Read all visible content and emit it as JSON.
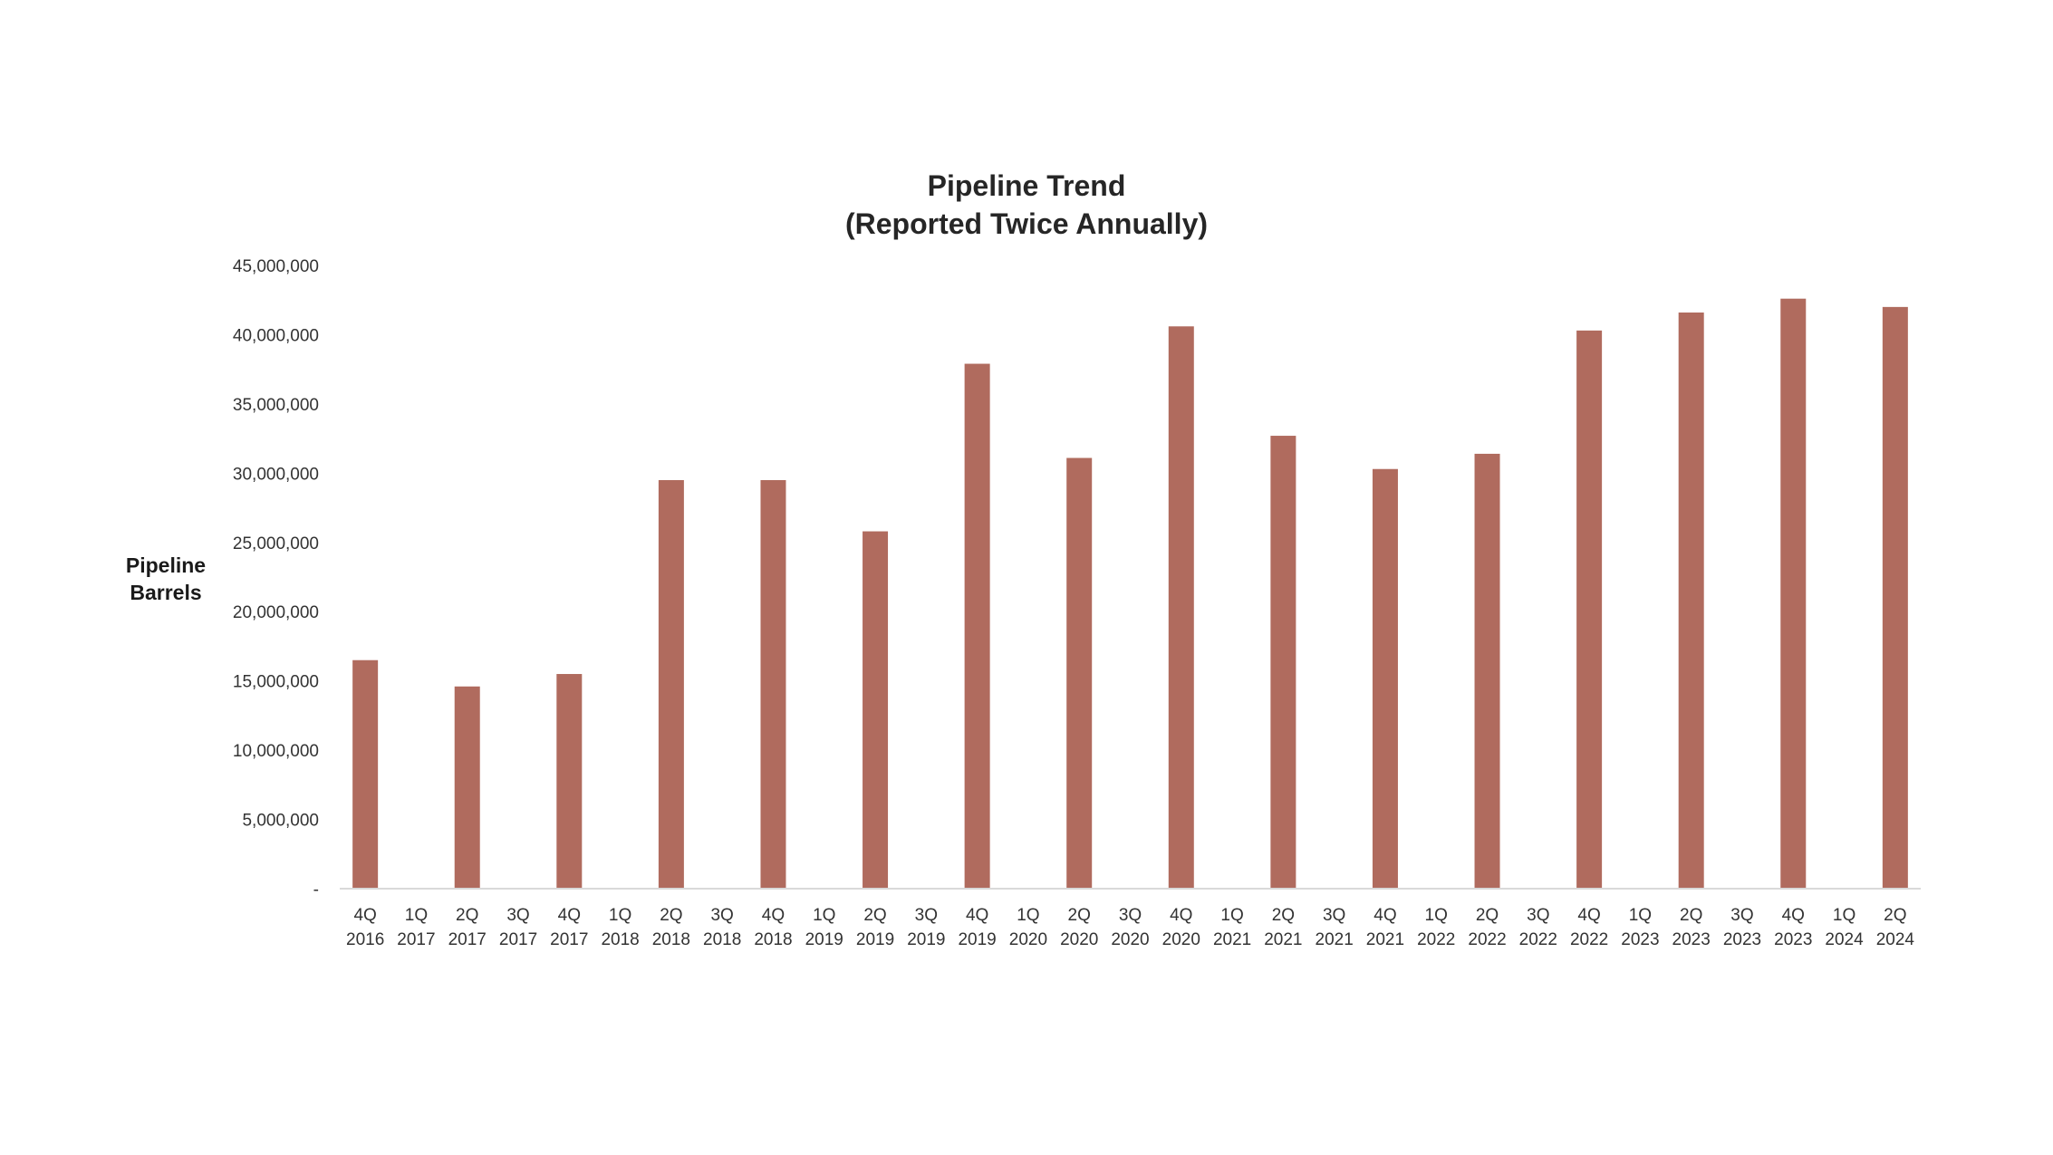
{
  "chart_data": {
    "type": "bar",
    "title_lines": [
      "Pipeline Trend",
      "(Reported Twice Annually)"
    ],
    "ylabel_lines": [
      "Pipeline",
      "Barrels"
    ],
    "xlabel": "",
    "ylim": [
      0,
      45000000
    ],
    "y_ticks": [
      {
        "value": 0,
        "label": "-"
      },
      {
        "value": 5000000,
        "label": "5,000,000"
      },
      {
        "value": 10000000,
        "label": "10,000,000"
      },
      {
        "value": 15000000,
        "label": "15,000,000"
      },
      {
        "value": 20000000,
        "label": "20,000,000"
      },
      {
        "value": 25000000,
        "label": "25,000,000"
      },
      {
        "value": 30000000,
        "label": "30,000,000"
      },
      {
        "value": 35000000,
        "label": "35,000,000"
      },
      {
        "value": 40000000,
        "label": "40,000,000"
      },
      {
        "value": 45000000,
        "label": "45,000,000"
      }
    ],
    "categories": [
      [
        "4Q",
        "2016"
      ],
      [
        "1Q",
        "2017"
      ],
      [
        "2Q",
        "2017"
      ],
      [
        "3Q",
        "2017"
      ],
      [
        "4Q",
        "2017"
      ],
      [
        "1Q",
        "2018"
      ],
      [
        "2Q",
        "2018"
      ],
      [
        "3Q",
        "2018"
      ],
      [
        "4Q",
        "2018"
      ],
      [
        "1Q",
        "2019"
      ],
      [
        "2Q",
        "2019"
      ],
      [
        "3Q",
        "2019"
      ],
      [
        "4Q",
        "2019"
      ],
      [
        "1Q",
        "2020"
      ],
      [
        "2Q",
        "2020"
      ],
      [
        "3Q",
        "2020"
      ],
      [
        "4Q",
        "2020"
      ],
      [
        "1Q",
        "2021"
      ],
      [
        "2Q",
        "2021"
      ],
      [
        "3Q",
        "2021"
      ],
      [
        "4Q",
        "2021"
      ],
      [
        "1Q",
        "2022"
      ],
      [
        "2Q",
        "2022"
      ],
      [
        "3Q",
        "2022"
      ],
      [
        "4Q",
        "2022"
      ],
      [
        "1Q",
        "2023"
      ],
      [
        "2Q",
        "2023"
      ],
      [
        "3Q",
        "2023"
      ],
      [
        "4Q",
        "2023"
      ],
      [
        "1Q",
        "2024"
      ],
      [
        "2Q",
        "2024"
      ]
    ],
    "values": [
      16500000,
      null,
      14600000,
      null,
      15500000,
      null,
      29500000,
      null,
      29500000,
      null,
      25800000,
      null,
      37900000,
      null,
      31100000,
      null,
      40600000,
      null,
      32700000,
      null,
      30300000,
      null,
      31400000,
      null,
      40300000,
      null,
      41600000,
      null,
      42600000,
      null,
      42000000
    ],
    "grid": false,
    "legend": "none",
    "bar_color": "#b06b5e"
  }
}
